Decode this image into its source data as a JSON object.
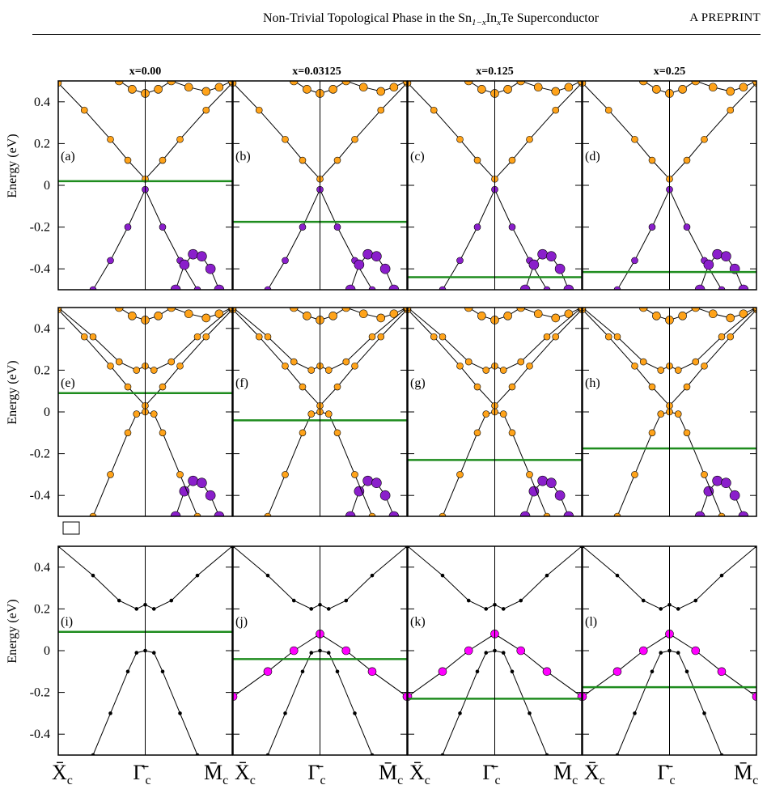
{
  "header": {
    "title_prefix": "Non-Trivial Topological Phase in the Sn",
    "title_sub1": "1−x",
    "title_mid": "In",
    "title_sub2": "x",
    "title_suffix": "Te Superconductor",
    "right_label": "A PREPRINT"
  },
  "colors": {
    "orange": "#FFA31A",
    "purple": "#8A1FCB",
    "magenta": "#FF00FF",
    "black": "#000000",
    "fermi_line": "#1E8C1E",
    "legend_box": "#FFFFFF"
  },
  "chart_data": {
    "type": "scatter",
    "ylabel": "Energy (eV)",
    "ylim": [
      -0.5,
      0.5
    ],
    "yticks": [
      "0.4",
      "0.2",
      "0",
      "-0.2",
      "-0.4"
    ],
    "ytick_values": [
      0.4,
      0.2,
      0,
      -0.2,
      -0.4
    ],
    "k_labels": [
      "X̄",
      "Γ̄",
      "M̄"
    ],
    "k_subscript": "c",
    "columns": [
      "x=0.00",
      "x=0.03125",
      "x=0.125",
      "x=0.25"
    ],
    "panels": [
      {
        "label": "(a)",
        "row": 0,
        "col": 0,
        "fermi_level": 0.02
      },
      {
        "label": "(b)",
        "row": 0,
        "col": 1,
        "fermi_level": -0.175
      },
      {
        "label": "(c)",
        "row": 0,
        "col": 2,
        "fermi_level": -0.44
      },
      {
        "label": "(d)",
        "row": 0,
        "col": 3,
        "fermi_level": -0.415
      },
      {
        "label": "(e)",
        "row": 1,
        "col": 0,
        "fermi_level": 0.09
      },
      {
        "label": "(f)",
        "row": 1,
        "col": 1,
        "fermi_level": -0.04
      },
      {
        "label": "(g)",
        "row": 1,
        "col": 2,
        "fermi_level": -0.23
      },
      {
        "label": "(h)",
        "row": 1,
        "col": 3,
        "fermi_level": -0.175
      },
      {
        "label": "(i)",
        "row": 2,
        "col": 0,
        "fermi_level": 0.09
      },
      {
        "label": "(j)",
        "row": 2,
        "col": 1,
        "fermi_level": -0.04
      },
      {
        "label": "(k)",
        "row": 2,
        "col": 2,
        "fermi_level": -0.23
      },
      {
        "label": "(l)",
        "row": 2,
        "col": 3,
        "fermi_level": -0.175
      }
    ],
    "bands": [
      {
        "rows": [
          0,
          1
        ],
        "cols": [
          0,
          1,
          2,
          3
        ],
        "x": [
          -1.0,
          -0.7,
          -0.4,
          -0.2,
          0.0,
          0.2,
          0.4,
          0.7,
          1.0
        ],
        "y": [
          0.49,
          0.36,
          0.22,
          0.12,
          0.03,
          0.12,
          0.22,
          0.36,
          0.49
        ],
        "color": "orange",
        "size": 4
      },
      {
        "rows": [
          0,
          1
        ],
        "cols": [
          0,
          1,
          2,
          3
        ],
        "x": [
          -0.3,
          -0.15,
          0.0,
          0.15,
          0.3,
          0.5,
          0.7,
          0.85,
          1.0
        ],
        "y": [
          0.5,
          0.46,
          0.44,
          0.46,
          0.5,
          0.47,
          0.45,
          0.47,
          0.5
        ],
        "color": "orange",
        "size": 5
      },
      {
        "rows": [
          0
        ],
        "cols": [
          0,
          1,
          2,
          3
        ],
        "x": [
          -0.6,
          -0.4,
          -0.2,
          0.0,
          0.2,
          0.4,
          0.6
        ],
        "y": [
          -0.5,
          -0.36,
          -0.2,
          -0.02,
          -0.2,
          -0.36,
          -0.5
        ],
        "color": "purple",
        "size": 4
      },
      {
        "rows": [
          0,
          1
        ],
        "cols": [
          0,
          1,
          2,
          3
        ],
        "x": [
          0.35,
          0.45,
          0.55,
          0.65,
          0.75,
          0.85
        ],
        "y": [
          -0.5,
          -0.38,
          -0.33,
          -0.34,
          -0.4,
          -0.5
        ],
        "color": "purple",
        "size": 6
      },
      {
        "rows": [
          1
        ],
        "cols": [
          0,
          1,
          2,
          3
        ],
        "x": [
          -1.0,
          -0.6,
          -0.3,
          -0.1,
          0.0,
          0.1,
          0.3,
          0.6,
          1.0
        ],
        "y": [
          0.5,
          0.36,
          0.24,
          0.2,
          0.22,
          0.2,
          0.24,
          0.36,
          0.5
        ],
        "color": "orange",
        "size": 4
      },
      {
        "rows": [
          1
        ],
        "cols": [
          0,
          1,
          2,
          3
        ],
        "x": [
          -0.6,
          -0.4,
          -0.2,
          -0.1,
          0.0,
          0.1,
          0.2,
          0.4,
          0.6
        ],
        "y": [
          -0.5,
          -0.3,
          -0.1,
          -0.01,
          0.0,
          -0.01,
          -0.1,
          -0.3,
          -0.5
        ],
        "color": "orange",
        "size": 4
      },
      {
        "rows": [
          2
        ],
        "cols": [
          0,
          1,
          2,
          3
        ],
        "x": [
          -1.0,
          -0.6,
          -0.3,
          -0.1,
          0.0,
          0.1,
          0.3,
          0.6,
          1.0
        ],
        "y": [
          0.5,
          0.36,
          0.24,
          0.2,
          0.22,
          0.2,
          0.24,
          0.36,
          0.5
        ],
        "color": "black",
        "size": 2
      },
      {
        "rows": [
          2
        ],
        "cols": [
          0,
          1,
          2,
          3
        ],
        "x": [
          -0.6,
          -0.4,
          -0.2,
          -0.1,
          0.0,
          0.1,
          0.2,
          0.4,
          0.6
        ],
        "y": [
          -0.5,
          -0.3,
          -0.1,
          -0.01,
          0.0,
          -0.01,
          -0.1,
          -0.3,
          -0.5
        ],
        "color": "black",
        "size": 2
      },
      {
        "rows": [
          2
        ],
        "cols": [
          1,
          2,
          3
        ],
        "x": [
          -1.0,
          -0.6,
          -0.3,
          0.0,
          0.3,
          0.6,
          1.0
        ],
        "y": [
          -0.22,
          -0.1,
          0.0,
          0.08,
          0.0,
          -0.1,
          -0.22
        ],
        "color": "magenta",
        "size": 5
      }
    ]
  }
}
